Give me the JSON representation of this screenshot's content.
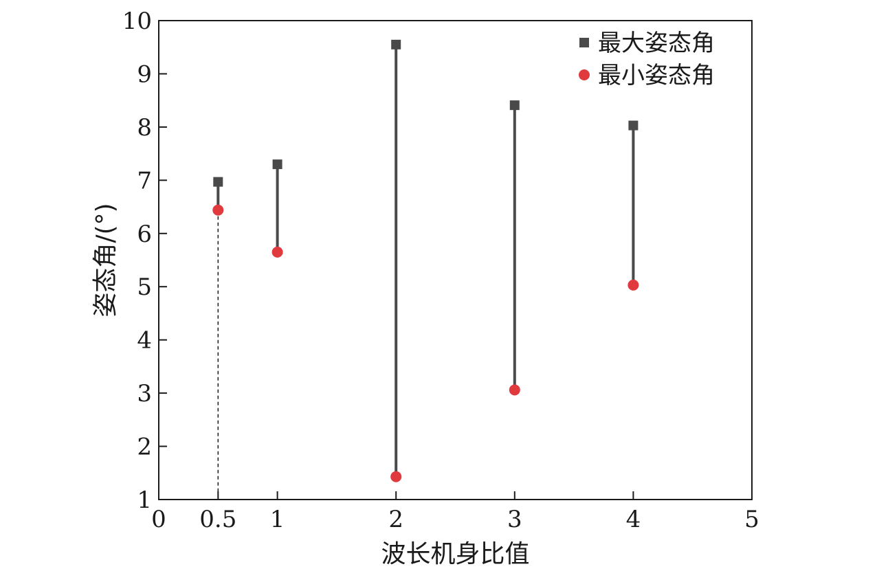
{
  "chart_data": {
    "type": "scatter",
    "xlabel": "波长机身比值",
    "ylabel": "姿态角/(°)",
    "xlim": [
      0,
      5
    ],
    "ylim": [
      1,
      10
    ],
    "x_ticks": [
      0,
      0.5,
      1,
      2,
      3,
      4,
      5
    ],
    "x_tick_labels": [
      "0",
      "0.5",
      "1",
      "2",
      "3",
      "4",
      "5"
    ],
    "y_ticks": [
      1,
      2,
      3,
      4,
      5,
      6,
      7,
      8,
      9,
      10
    ],
    "y_tick_labels": [
      "1",
      "2",
      "3",
      "4",
      "5",
      "6",
      "7",
      "8",
      "9",
      "10"
    ],
    "grid": false,
    "legend_position": "top-right",
    "x": [
      0.5,
      1,
      2,
      3,
      4
    ],
    "series": [
      {
        "name": "最大姿态角",
        "marker": "square",
        "color": "#4a4a4a",
        "values": [
          6.97,
          7.3,
          9.55,
          8.41,
          8.03
        ]
      },
      {
        "name": "最小姿态角",
        "marker": "circle",
        "color": "#e03a3e",
        "values": [
          6.44,
          5.65,
          1.43,
          3.06,
          5.03
        ]
      }
    ],
    "range_line_color": "#4a4a4a",
    "reference_line": {
      "x": 0.5,
      "style": "dashed",
      "color": "#1a1a1a"
    }
  }
}
